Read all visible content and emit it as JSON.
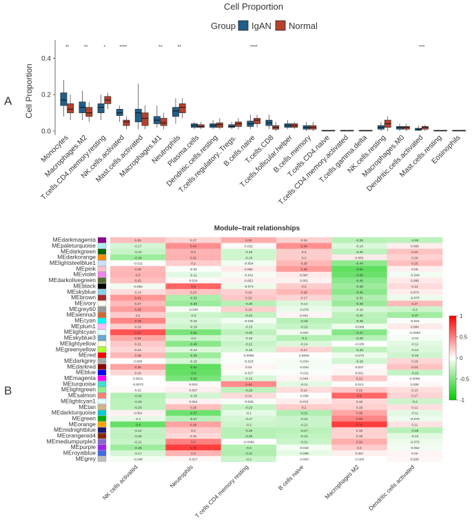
{
  "panel_labels": {
    "a": "A",
    "b": "B"
  },
  "colors": {
    "iga": "#1f5f8b",
    "normal": "#b5412c",
    "heat_pos": "#ff0000",
    "heat_neg": "#00cc00"
  },
  "chart_data": [
    {
      "type": "box",
      "title": "Cell Proportion",
      "ylabel": "Cell Proportion",
      "ylim": [
        0,
        0.5
      ],
      "yticks": [
        0.0,
        0.2,
        0.4
      ],
      "legend": {
        "title": "Group",
        "position": "top",
        "entries": [
          "IgAN",
          "Normal"
        ]
      },
      "categories": [
        "Monocytes",
        "Macrophages.M2",
        "T.cells.CD4.memory.resting",
        "NK.cells.activated",
        "Mast.cells.activated",
        "Macrophages.M1",
        "Neutrophils",
        "Plasma.cells",
        "Dendritic.cells.resting",
        "T.cells.regulatory..Tregs.",
        "B.cells.naive",
        "T.cells.CD8",
        "T.cells.follicular.helper",
        "B.cells.memory",
        "T.cells.CD4.naive",
        "T.cells.CD4.memory.activated",
        "T.cells.gamma.delta",
        "NK.cells.resting",
        "Macrophages.M0",
        "Dendritic.cells.activated",
        "Mast.cells.resting",
        "Eosinophils"
      ],
      "significance": [
        "**",
        "**",
        "*",
        "****",
        "",
        "**",
        "**",
        "",
        "",
        "",
        "****",
        "",
        "",
        "",
        "",
        "",
        "",
        "",
        "",
        "***",
        "",
        ""
      ],
      "series": [
        {
          "name": "IgAN",
          "boxes": [
            [
              0.08,
              0.14,
              0.17,
              0.21,
              0.28
            ],
            [
              0.06,
              0.1,
              0.13,
              0.16,
              0.22
            ],
            [
              0.06,
              0.1,
              0.13,
              0.15,
              0.2
            ],
            [
              0.05,
              0.085,
              0.1,
              0.12,
              0.14
            ],
            [
              0.01,
              0.05,
              0.1,
              0.12,
              0.26
            ],
            [
              0.02,
              0.04,
              0.06,
              0.08,
              0.14
            ],
            [
              0.04,
              0.08,
              0.11,
              0.13,
              0.18
            ],
            [
              0.01,
              0.02,
              0.03,
              0.04,
              0.05
            ],
            [
              0.01,
              0.02,
              0.03,
              0.04,
              0.06
            ],
            [
              0.01,
              0.02,
              0.025,
              0.035,
              0.05
            ],
            [
              0.01,
              0.025,
              0.04,
              0.055,
              0.09
            ],
            [
              0.01,
              0.03,
              0.045,
              0.06,
              0.09
            ],
            [
              0.01,
              0.02,
              0.03,
              0.04,
              0.06
            ],
            [
              0.0,
              0.01,
              0.02,
              0.03,
              0.05
            ],
            [
              0,
              0,
              0.002,
              0.004,
              0.006
            ],
            [
              0,
              0,
              0.002,
              0.004,
              0.006
            ],
            [
              0,
              0,
              0.002,
              0.004,
              0.006
            ],
            [
              0.0,
              0.01,
              0.02,
              0.03,
              0.05
            ],
            [
              0.0,
              0.01,
              0.02,
              0.025,
              0.04
            ],
            [
              0.0,
              0.004,
              0.01,
              0.015,
              0.03
            ],
            [
              0,
              0,
              0.002,
              0.004,
              0.006
            ],
            [
              0,
              0,
              0.002,
              0.004,
              0.006
            ]
          ]
        },
        {
          "name": "Normal",
          "boxes": [
            [
              0.06,
              0.1,
              0.12,
              0.15,
              0.2
            ],
            [
              0.05,
              0.08,
              0.1,
              0.13,
              0.16
            ],
            [
              0.12,
              0.15,
              0.17,
              0.19,
              0.21
            ],
            [
              0.01,
              0.03,
              0.05,
              0.06,
              0.08
            ],
            [
              0.01,
              0.03,
              0.07,
              0.1,
              0.14
            ],
            [
              0.01,
              0.03,
              0.045,
              0.07,
              0.1
            ],
            [
              0.07,
              0.1,
              0.13,
              0.15,
              0.18
            ],
            [
              0.01,
              0.02,
              0.025,
              0.035,
              0.05
            ],
            [
              0.01,
              0.02,
              0.035,
              0.045,
              0.07
            ],
            [
              0.01,
              0.025,
              0.04,
              0.05,
              0.07
            ],
            [
              0.02,
              0.04,
              0.06,
              0.07,
              0.09
            ],
            [
              0.0,
              0.01,
              0.02,
              0.03,
              0.05
            ],
            [
              0.01,
              0.02,
              0.03,
              0.04,
              0.05
            ],
            [
              0.0,
              0.01,
              0.02,
              0.03,
              0.05
            ],
            [
              0,
              0,
              0.002,
              0.004,
              0.006
            ],
            [
              0,
              0,
              0.002,
              0.004,
              0.006
            ],
            [
              0,
              0,
              0.002,
              0.004,
              0.006
            ],
            [
              0.0,
              0.02,
              0.04,
              0.06,
              0.08
            ],
            [
              0.0,
              0.01,
              0.02,
              0.025,
              0.04
            ],
            [
              0.0,
              0.01,
              0.02,
              0.025,
              0.035
            ],
            [
              0,
              0,
              0.002,
              0.004,
              0.006
            ],
            [
              0,
              0,
              0.002,
              0.004,
              0.006
            ]
          ]
        }
      ]
    },
    {
      "type": "heatmap",
      "title": "Module–trait relationships",
      "colorbar": {
        "min": -1,
        "max": 1,
        "ticks": [
          -1,
          -0.5,
          0,
          0.5,
          1
        ]
      },
      "columns": [
        "NK cells activated",
        "Neutrophils",
        "T cells CD4 memory resting",
        "B cells naive",
        "Macrophages M2",
        "Dendritic cells activated"
      ],
      "rows": [
        {
          "name": "MEdarkmagenta",
          "color": "#8b008b",
          "r": [
            0.25,
            0.17,
            0.32,
            0.18,
            -0.28,
            -0.26
          ]
        },
        {
          "name": "MEpaleturquoise",
          "color": "#afeeee",
          "r": [
            -0.17,
            0.44,
            0.022,
            0.44,
            -0.14,
            0.068
          ]
        },
        {
          "name": "MEdarkgreen",
          "color": "#006400",
          "r": [
            -0.22,
            0.3,
            -0.19,
            0.2,
            -0.25,
            0.24
          ]
        },
        {
          "name": "MEdarkorange",
          "color": "#ff8c00",
          "r": [
            -0.38,
            0.31,
            -0.19,
            0.2,
            0.082,
            0.18
          ]
        },
        {
          "name": "MElightsteelblue1",
          "color": "#cae1ff",
          "r": [
            -0.011,
            0.2,
            -0.054,
            0.28,
            -0.44,
            0.25
          ]
        },
        {
          "name": "MEpink",
          "color": "#ffc0cb",
          "r": [
            0.28,
            -0.02,
            0.082,
            0.39,
            -0.62,
            0.06
          ]
        },
        {
          "name": "MEviolet",
          "color": "#ee82ee",
          "r": [
            0.3,
            -0.11,
            -0.041,
            0.087,
            -0.58,
            -0.046
          ]
        },
        {
          "name": "MEdarkolivegreen",
          "color": "#556b2f",
          "r": [
            0.25,
            0.024,
            0.053,
            0.051,
            -0.45,
            0.088
          ]
        },
        {
          "name": "MEblack",
          "color": "#000000",
          "r": [
            -0.052,
            0.6,
            -0.073,
            0.2,
            -0.38,
            0.14
          ]
        },
        {
          "name": "MEskyblue",
          "color": "#87ceeb",
          "r": [
            0.14,
            0.23,
            0.18,
            0.28,
            -0.45,
            0.073
          ]
        },
        {
          "name": "MEbrown",
          "color": "#a52a2a",
          "r": [
            0.41,
            -0.32,
            0.22,
            0.17,
            -0.31,
            -0.076
          ]
        },
        {
          "name": "MEivory",
          "color": "#fffff0",
          "r": [
            0.27,
            -0.39,
            -0.28,
            -0.14,
            -0.39,
            0.27
          ]
        },
        {
          "name": "MEgrey60",
          "color": "#999999",
          "r": [
            0.38,
            -0.044,
            0.19,
            -0.079,
            -0.16,
            -0.2
          ]
        },
        {
          "name": "MEsienna3",
          "color": "#cd6839",
          "r": [
            0.2,
            -0.2,
            -0.23,
            0.041,
            -0.26,
            -0.37
          ]
        },
        {
          "name": "MEcyan",
          "color": "#00ffff",
          "r": [
            0.48,
            -0.15,
            -0.048,
            -0.28,
            -0.28,
            -0.024
          ]
        },
        {
          "name": "MEplum1",
          "color": "#ffbbff",
          "r": [
            0.19,
            -0.19,
            -0.15,
            -0.22,
            -0.066,
            0.084
          ]
        },
        {
          "name": "MElightcyan",
          "color": "#e0ffff",
          "r": [
            0.67,
            -0.52,
            -0.25,
            -0.057,
            -0.47,
            -0.0093
          ]
        },
        {
          "name": "MEskyblue3",
          "color": "#6ca6cd",
          "r": [
            0.35,
            -0.2,
            -0.15,
            -0.3,
            -0.28,
            -0.04
          ]
        },
        {
          "name": "MElightyellow",
          "color": "#ffffe0",
          "r": [
            0.21,
            -0.46,
            -0.21,
            -0.14,
            -0.005,
            -0.11
          ]
        },
        {
          "name": "MEgreenyellow",
          "color": "#adff2f",
          "r": [
            0.16,
            -0.14,
            -0.16,
            0.17,
            -0.25,
            -0.14
          ]
        },
        {
          "name": "MEred",
          "color": "#ff0000",
          "r": [
            0.28,
            -0.38,
            0.0088,
            0.0055,
            -0.072,
            -0.19
          ]
        },
        {
          "name": "MEdarkgrey",
          "color": "#a9a9a9",
          "r": [
            0.008,
            -0.16,
            -0.026,
            -0.034,
            -0.18,
            0.16
          ]
        },
        {
          "name": "MEdarkred",
          "color": "#8b0000",
          "r": [
            0.36,
            -0.62,
            0.04,
            -0.044,
            0.027,
            0.24
          ]
        },
        {
          "name": "MEblue",
          "color": "#0000ff",
          "r": [
            0.16,
            -0.6,
            -0.027,
            -0.011,
            0.041,
            -0.23
          ]
        },
        {
          "name": "MEmagenta",
          "color": "#ff00ff",
          "r": [
            0.0021,
            -0.52,
            -0.15,
            0.049,
            0.22,
            0.0089
          ]
        },
        {
          "name": "MEturquoise",
          "color": "#40e0d0",
          "r": [
            -0.0071,
            0.022,
            0.45,
            -0.11,
            0.013,
            0.026
          ]
        },
        {
          "name": "MElightgreen",
          "color": "#90ee90",
          "r": [
            0.02,
            0.067,
            -0.26,
            0.14,
            0.22,
            0.13
          ]
        },
        {
          "name": "MEsalmon",
          "color": "#fa8072",
          "r": [
            -0.29,
            -0.18,
            0.14,
            -0.006,
            0.6,
            0.17
          ]
        },
        {
          "name": "MElightcyan1",
          "color": "#e0ffff",
          "r": [
            -0.26,
            0.054,
            -0.035,
            0.072,
            0.15,
            -0.2
          ]
        },
        {
          "name": "MEtan",
          "color": "#d2b48c",
          "r": [
            -0.26,
            0.25,
            -0.23,
            0.2,
            0.18,
            0.12
          ]
        },
        {
          "name": "MEdarkturquoise",
          "color": "#00ced1",
          "r": [
            0.054,
            -0.57,
            -0.1,
            -0.31,
            0.35,
            -0.11
          ]
        },
        {
          "name": "MEgreen",
          "color": "#00b000",
          "r": [
            -0.1,
            -0.27,
            -0.17,
            -0.21,
            0.48,
            -0.076
          ]
        },
        {
          "name": "MEorange",
          "color": "#ffa500",
          "r": [
            -0.6,
            0.36,
            -0.2,
            -0.21,
            0.76,
            0.11
          ]
        },
        {
          "name": "MEmidnightblue",
          "color": "#191970",
          "r": [
            -0.24,
            0.2,
            -0.28,
            -0.27,
            0.18,
            -0.28
          ]
        },
        {
          "name": "MEorangered4",
          "color": "#8b2500",
          "r": [
            -0.25,
            0.15,
            -0.28,
            -0.24,
            0.18,
            -0.12
          ]
        },
        {
          "name": "MEmediumpurple3",
          "color": "#8968cd",
          "r": [
            -0.21,
            0.5,
            -0.0056,
            -0.21,
            0.32,
            -0.075
          ]
        },
        {
          "name": "MEpurple",
          "color": "#a020f0",
          "r": [
            -0.38,
            0.76,
            -0.3,
            -0.043,
            0.2,
            -0.052
          ]
        },
        {
          "name": "MEroyalblue",
          "color": "#4169e1",
          "r": [
            -0.17,
            0.3,
            -0.31,
            -0.098,
            0.057,
            0.04
          ]
        },
        {
          "name": "MEgrey",
          "color": "#bebebe",
          "r": [
            -0.048,
            0.027,
            -0.2,
            -0.003,
            -0.004,
            0.034
          ]
        }
      ]
    }
  ]
}
